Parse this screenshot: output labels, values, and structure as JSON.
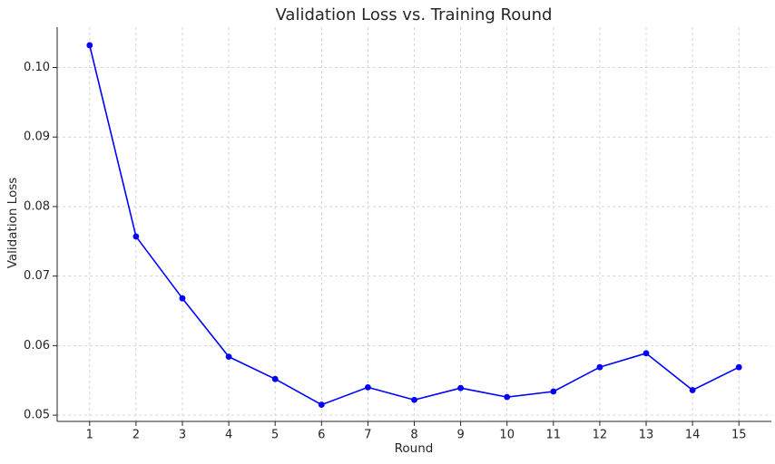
{
  "chart_data": {
    "type": "line",
    "title": "Validation Loss vs. Training Round",
    "xlabel": "Round",
    "ylabel": "Validation Loss",
    "x": [
      1,
      2,
      3,
      4,
      5,
      6,
      7,
      8,
      9,
      10,
      11,
      12,
      13,
      14,
      15
    ],
    "series": [
      {
        "values": [
          0.1032,
          0.0757,
          0.0668,
          0.0584,
          0.0552,
          0.0515,
          0.054,
          0.0522,
          0.0539,
          0.0526,
          0.0534,
          0.0569,
          0.0589,
          0.0536,
          0.0569
        ]
      }
    ],
    "xlim": [
      0.3,
      15.7
    ],
    "ylim": [
      0.0491,
      0.1058
    ],
    "yticks": [
      0.05,
      0.06,
      0.07,
      0.08,
      0.09,
      0.1
    ],
    "ytick_labels": [
      "0.05",
      "0.06",
      "0.07",
      "0.08",
      "0.09",
      "0.10"
    ],
    "xtick_labels": [
      "1",
      "2",
      "3",
      "4",
      "5",
      "6",
      "7",
      "8",
      "9",
      "10",
      "11",
      "12",
      "13",
      "14",
      "15"
    ],
    "grid": true,
    "markers": true,
    "colors": {
      "line": "#0000ff",
      "grid": "#cccccc",
      "axes": "#262626"
    }
  }
}
